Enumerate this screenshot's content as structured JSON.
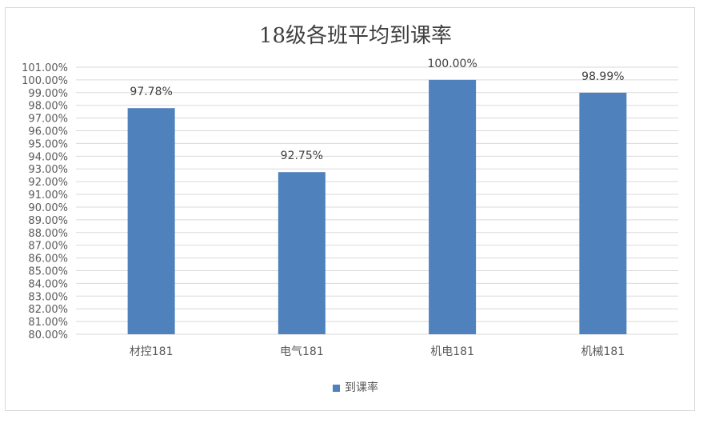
{
  "chart_data": {
    "type": "bar",
    "title": "18级各班平均到课率",
    "categories": [
      "材控181",
      "电气181",
      "机电181",
      "机械181"
    ],
    "series": [
      {
        "name": "到课率",
        "values": [
          97.78,
          92.75,
          100.0,
          98.99
        ],
        "color": "#4f81bd"
      }
    ],
    "data_labels": [
      "97.78%",
      "92.75%",
      "100.00%",
      "98.99%"
    ],
    "ylim": [
      80,
      101
    ],
    "ytick_step": 1,
    "ytick_format": "0.00%",
    "grid": true,
    "legend": "bottom",
    "xlabel": "",
    "ylabel": ""
  }
}
